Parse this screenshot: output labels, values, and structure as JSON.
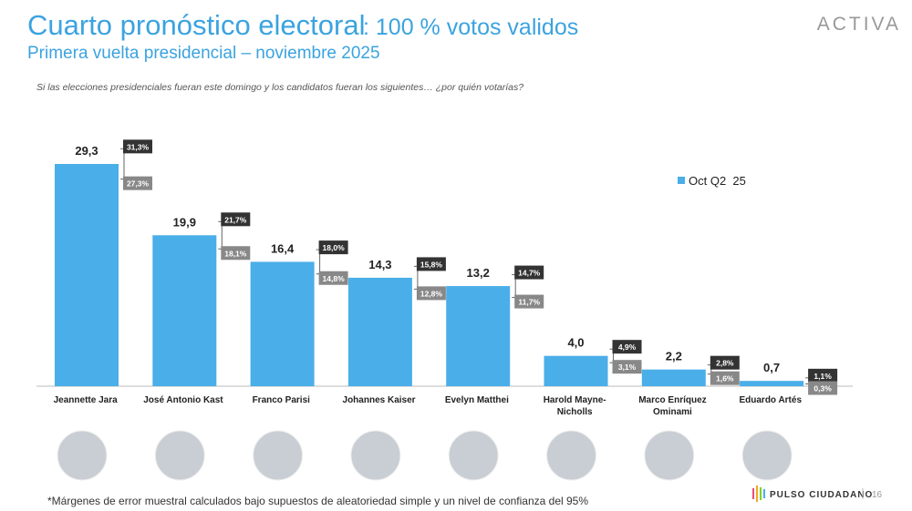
{
  "chart_data": {
    "type": "bar",
    "title": "Cuarto pronóstico electoral",
    "title_note": ": 100 % votos validos",
    "subtitle": "Primera vuelta presidencial – noviembre 2025",
    "question": "Si las elecciones presidenciales fueran este domingo y los candidatos fueran los siguientes… ¿por quién votarías?",
    "footnote": "*Márgenes de error muestral calculados bajo supuestos de aleatoriedad simple y un nivel de confianza del 95%",
    "brand": "ACTIVA",
    "source": "PULSO CIUDADANO",
    "page_number": "16",
    "categories": [
      "Jeannette Jara",
      "José Antonio Kast",
      "Franco Parisi",
      "Johannes Kaiser",
      "Evelyn Matthei",
      "Harold Mayne-Nicholls",
      "Marco Enríquez Ominami",
      "Eduardo Artés"
    ],
    "series": [
      {
        "name": "Oct Q2  25",
        "color": "#4aaee8",
        "values": [
          29.3,
          19.9,
          16.4,
          14.3,
          13.2,
          4.0,
          2.2,
          0.7
        ],
        "value_labels": [
          "29,3",
          "19,9",
          "16,4",
          "14,3",
          "13,2",
          "4,0",
          "2,2",
          "0,7"
        ],
        "upper": [
          31.3,
          21.7,
          18.0,
          15.8,
          14.7,
          4.9,
          2.8,
          1.1
        ],
        "upper_labels": [
          "31,3%",
          "21,7%",
          "18,0%",
          "15,8%",
          "14,7%",
          "4,9%",
          "2,8%",
          "1,1%"
        ],
        "lower": [
          27.3,
          18.1,
          14.8,
          12.8,
          11.7,
          3.1,
          1.6,
          0.3
        ],
        "lower_labels": [
          "27,3%",
          "18,1%",
          "14,8%",
          "12,8%",
          "11,7%",
          "3,1%",
          "1,6%",
          "0,3%"
        ]
      }
    ],
    "legend": "right"
  }
}
